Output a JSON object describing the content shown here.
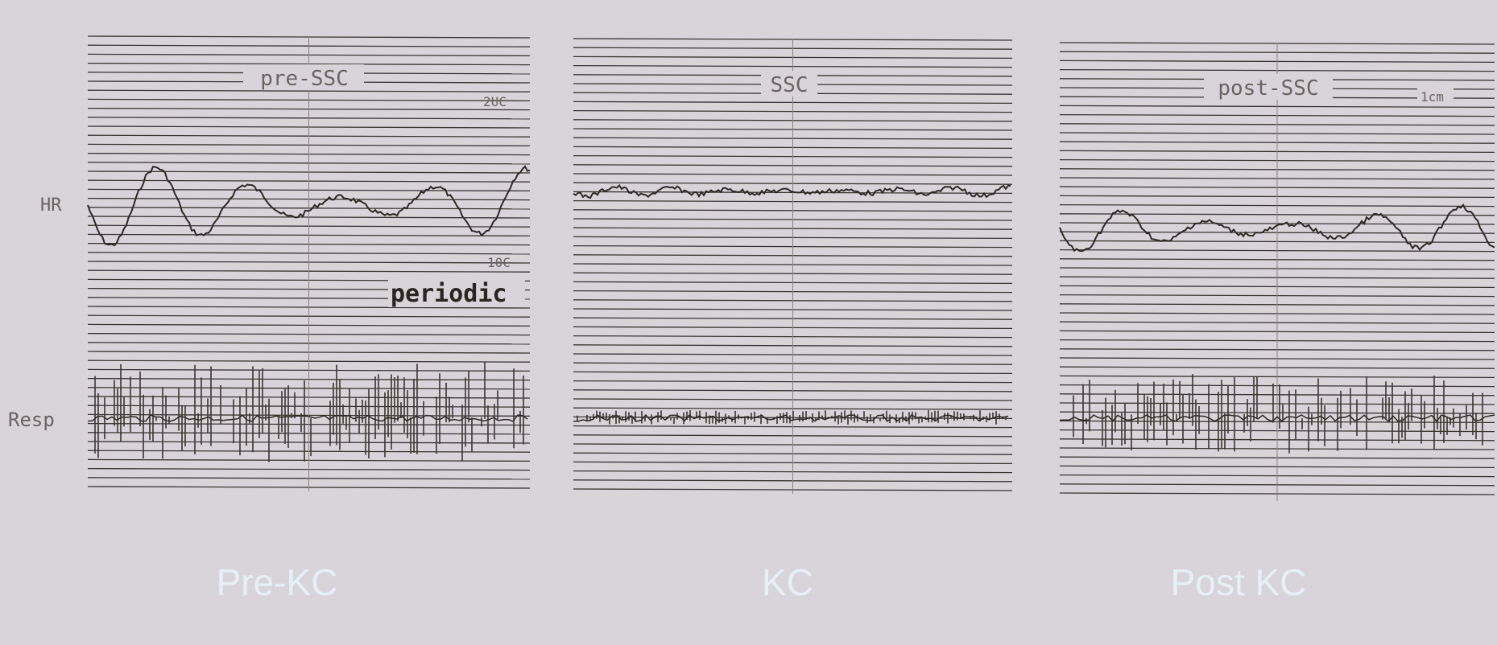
{
  "labels": {
    "hr": "HR",
    "resp": "Resp"
  },
  "panels": [
    {
      "header": "pre-SSC",
      "caption": "Pre-KC",
      "notes": [
        "2UC",
        "10C",
        "periodic"
      ]
    },
    {
      "header": "SSC",
      "caption": "KC"
    },
    {
      "header": "post-SSC",
      "caption": "Post KC",
      "notes": [
        "1cm"
      ]
    }
  ]
}
